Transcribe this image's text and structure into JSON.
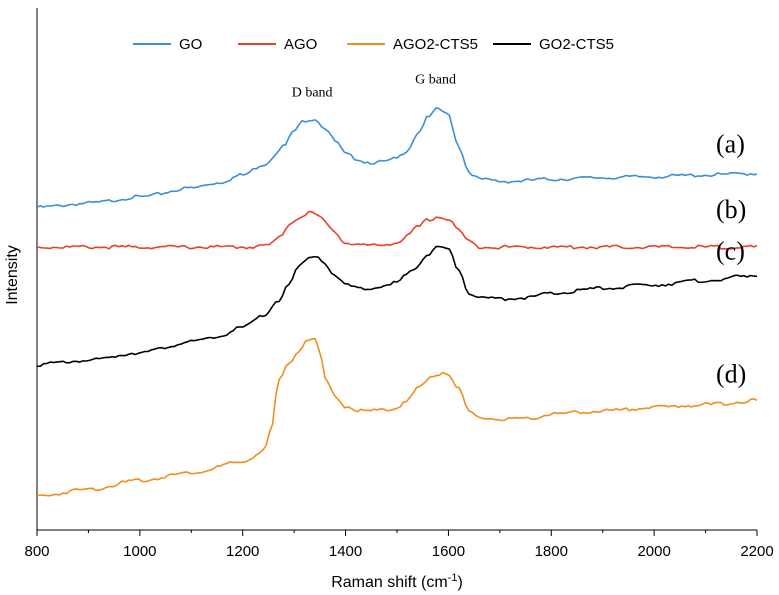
{
  "chart_data": {
    "type": "line",
    "title": "",
    "xlabel": "Raman shift (cm",
    "xlabel_sup": "-1",
    "xlabel_close": ")",
    "ylabel": "Intensity",
    "xlim": [
      800,
      2200
    ],
    "ylim": [
      0,
      1
    ],
    "xticks": [
      800,
      1000,
      1200,
      1400,
      1600,
      1800,
      2000,
      2200
    ],
    "legend_position": "top",
    "grid": false,
    "series": [
      {
        "name": "GO",
        "color": "#3b8fd9",
        "curve_label": "(a)",
        "x": [
          800,
          900,
          1000,
          1100,
          1150,
          1200,
          1240,
          1280,
          1300,
          1320,
          1340,
          1360,
          1380,
          1400,
          1420,
          1440,
          1460,
          1480,
          1500,
          1520,
          1540,
          1560,
          1580,
          1600,
          1620,
          1640,
          1660,
          1680,
          1700,
          1720,
          1800,
          1900,
          2000,
          2100,
          2200
        ],
        "y": [
          0.618,
          0.626,
          0.638,
          0.655,
          0.665,
          0.68,
          0.7,
          0.735,
          0.765,
          0.785,
          0.788,
          0.77,
          0.745,
          0.72,
          0.712,
          0.705,
          0.704,
          0.706,
          0.712,
          0.728,
          0.76,
          0.79,
          0.807,
          0.795,
          0.735,
          0.686,
          0.672,
          0.67,
          0.668,
          0.668,
          0.672,
          0.675,
          0.677,
          0.68,
          0.683
        ]
      },
      {
        "name": "AGO",
        "color": "#e8412a",
        "curve_label": "(b)",
        "x": [
          800,
          1000,
          1200,
          1250,
          1270,
          1290,
          1310,
          1330,
          1350,
          1370,
          1400,
          1430,
          1460,
          1500,
          1520,
          1540,
          1560,
          1580,
          1600,
          1620,
          1640,
          1660,
          1700,
          1800,
          2000,
          2200
        ],
        "y": [
          0.542,
          0.542,
          0.542,
          0.545,
          0.56,
          0.585,
          0.6,
          0.608,
          0.6,
          0.58,
          0.55,
          0.546,
          0.545,
          0.55,
          0.563,
          0.58,
          0.594,
          0.6,
          0.595,
          0.575,
          0.552,
          0.543,
          0.542,
          0.542,
          0.542,
          0.542
        ]
      },
      {
        "name": "GO2-CTS5",
        "color": "#000000",
        "curve_label": "(c)",
        "x": [
          800,
          900,
          1000,
          1100,
          1150,
          1200,
          1240,
          1270,
          1290,
          1310,
          1330,
          1345,
          1360,
          1380,
          1400,
          1420,
          1450,
          1480,
          1500,
          1530,
          1560,
          1580,
          1600,
          1620,
          1640,
          1660,
          1700,
          1750,
          1800,
          1900,
          2000,
          2100,
          2200
        ],
        "y": [
          0.317,
          0.325,
          0.34,
          0.36,
          0.37,
          0.388,
          0.41,
          0.44,
          0.47,
          0.505,
          0.522,
          0.525,
          0.51,
          0.485,
          0.47,
          0.465,
          0.463,
          0.466,
          0.475,
          0.5,
          0.527,
          0.542,
          0.537,
          0.5,
          0.455,
          0.445,
          0.443,
          0.445,
          0.453,
          0.463,
          0.47,
          0.478,
          0.488
        ]
      },
      {
        "name": "AGO2-CTS5",
        "color": "#f08e1e",
        "curve_label": "(d)",
        "x": [
          800,
          900,
          1000,
          1100,
          1200,
          1240,
          1255,
          1270,
          1290,
          1310,
          1325,
          1340,
          1350,
          1360,
          1380,
          1400,
          1420,
          1450,
          1480,
          1500,
          1520,
          1545,
          1570,
          1590,
          1600,
          1620,
          1640,
          1660,
          1700,
          1750,
          1800,
          1900,
          2000,
          2100,
          2200
        ],
        "y": [
          0.065,
          0.078,
          0.095,
          0.11,
          0.13,
          0.15,
          0.19,
          0.285,
          0.32,
          0.345,
          0.365,
          0.365,
          0.34,
          0.29,
          0.255,
          0.237,
          0.23,
          0.228,
          0.23,
          0.235,
          0.25,
          0.275,
          0.295,
          0.302,
          0.298,
          0.27,
          0.225,
          0.215,
          0.212,
          0.212,
          0.222,
          0.228,
          0.235,
          0.24,
          0.248
        ]
      }
    ],
    "annotations": [
      {
        "text": "D band",
        "x": 1335,
        "y": 0.83
      },
      {
        "text": "G band",
        "x": 1575,
        "y": 0.855
      }
    ]
  }
}
